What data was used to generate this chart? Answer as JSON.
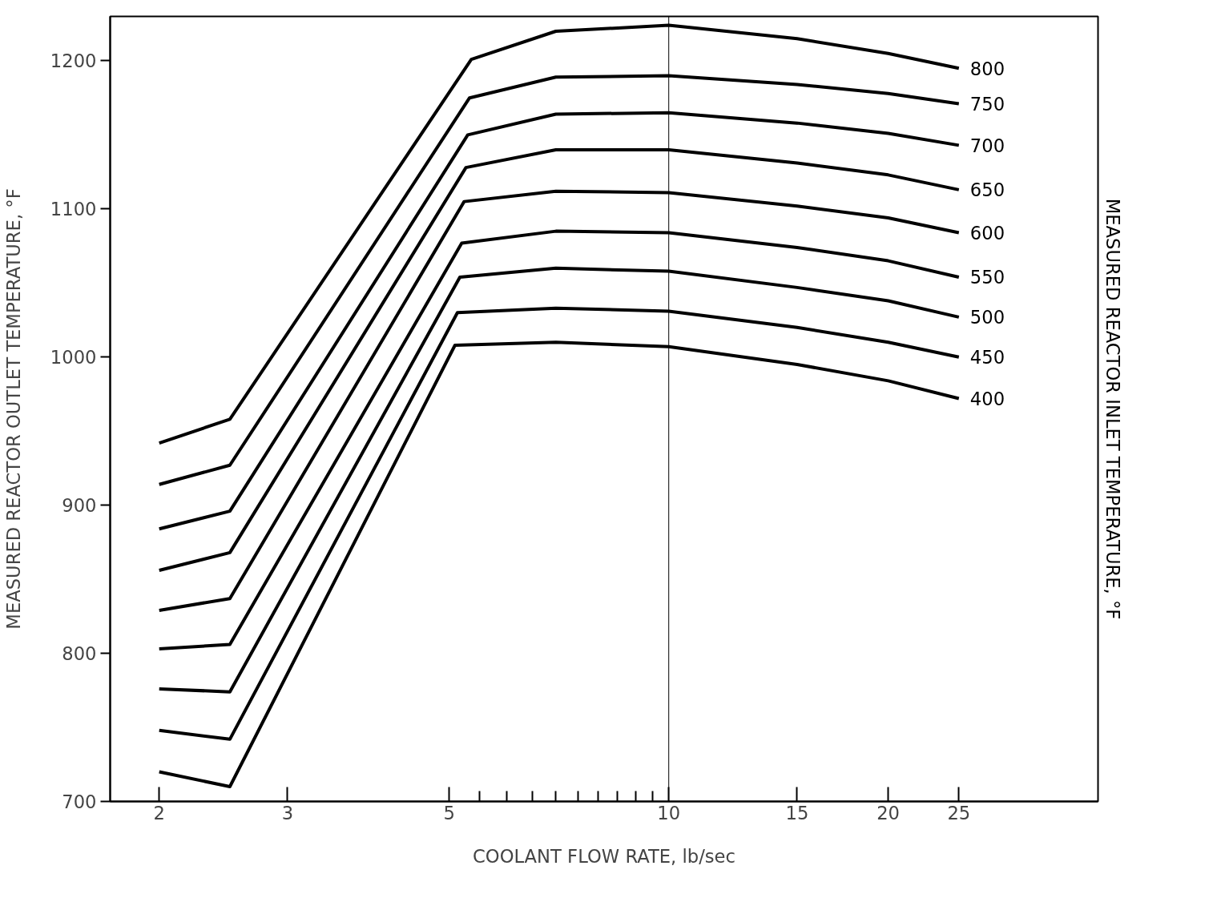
{
  "chart_data": {
    "type": "line",
    "xlabel": "COOLANT FLOW RATE, lb/sec",
    "ylabel": "MEASURED REACTOR OUTLET TEMPERATURE, °F",
    "y2label": "MEASURED REACTOR INLET TEMPERATURE, °F",
    "log": "x",
    "xlim": [
      1.713,
      38.8
    ],
    "ylim": [
      700,
      1230
    ],
    "xticks": [
      2,
      3,
      5,
      {
        "value": 5.5,
        "label": null
      },
      {
        "value": 6,
        "label": null
      },
      {
        "value": 6.5,
        "label": null
      },
      {
        "value": 7,
        "label": null
      },
      {
        "value": 7.5,
        "label": null
      },
      {
        "value": 8,
        "label": null
      },
      {
        "value": 8.5,
        "label": null
      },
      {
        "value": 9,
        "label": null
      },
      {
        "value": 9.5,
        "label": null
      },
      10,
      15,
      20,
      25
    ],
    "yticks": [
      700,
      800,
      900,
      1000,
      1100,
      1200
    ],
    "grid": false,
    "marker": "none",
    "line_style": "solid",
    "ref_lines": [
      {
        "axis": "x",
        "value": 10,
        "color": "#000000"
      }
    ],
    "series": [
      {
        "name": "800",
        "color": "#000000",
        "x": [
          2,
          2.5,
          5.36,
          7,
          10,
          15,
          20,
          25
        ],
        "values": [
          942,
          958,
          1201,
          1220,
          1224,
          1215,
          1205,
          1195
        ]
      },
      {
        "name": "750",
        "color": "#000000",
        "x": [
          2,
          2.5,
          5.33,
          7,
          10,
          15,
          20,
          25
        ],
        "values": [
          914,
          927,
          1175,
          1189,
          1190,
          1184,
          1178,
          1171
        ]
      },
      {
        "name": "700",
        "color": "#000000",
        "x": [
          2,
          2.5,
          5.3,
          7,
          10,
          15,
          20,
          25
        ],
        "values": [
          884,
          896,
          1150,
          1164,
          1165,
          1158,
          1151,
          1143
        ]
      },
      {
        "name": "650",
        "color": "#000000",
        "x": [
          2,
          2.5,
          5.27,
          7,
          10,
          15,
          20,
          25
        ],
        "values": [
          856,
          868,
          1128,
          1140,
          1140,
          1131,
          1123,
          1113
        ]
      },
      {
        "name": "600",
        "color": "#000000",
        "x": [
          2,
          2.5,
          5.24,
          7,
          10,
          15,
          20,
          25
        ],
        "values": [
          829,
          837,
          1105,
          1112,
          1111,
          1102,
          1094,
          1084
        ]
      },
      {
        "name": "550",
        "color": "#000000",
        "x": [
          2,
          2.5,
          5.2,
          7,
          10,
          15,
          20,
          25
        ],
        "values": [
          803,
          806,
          1077,
          1085,
          1084,
          1074,
          1065,
          1054
        ]
      },
      {
        "name": "500",
        "color": "#000000",
        "x": [
          2,
          2.5,
          5.17,
          7,
          10,
          15,
          20,
          25
        ],
        "values": [
          776,
          774,
          1054,
          1060,
          1058,
          1047,
          1038,
          1027
        ]
      },
      {
        "name": "450",
        "color": "#000000",
        "x": [
          2,
          2.5,
          5.13,
          7,
          10,
          15,
          20,
          25
        ],
        "values": [
          748,
          742,
          1030,
          1033,
          1031,
          1020,
          1010,
          1000
        ]
      },
      {
        "name": "400",
        "color": "#000000",
        "x": [
          2,
          2.5,
          5.09,
          7,
          10,
          15,
          20,
          25
        ],
        "values": [
          720,
          710,
          1008,
          1010,
          1007,
          995,
          984,
          972
        ]
      }
    ]
  }
}
